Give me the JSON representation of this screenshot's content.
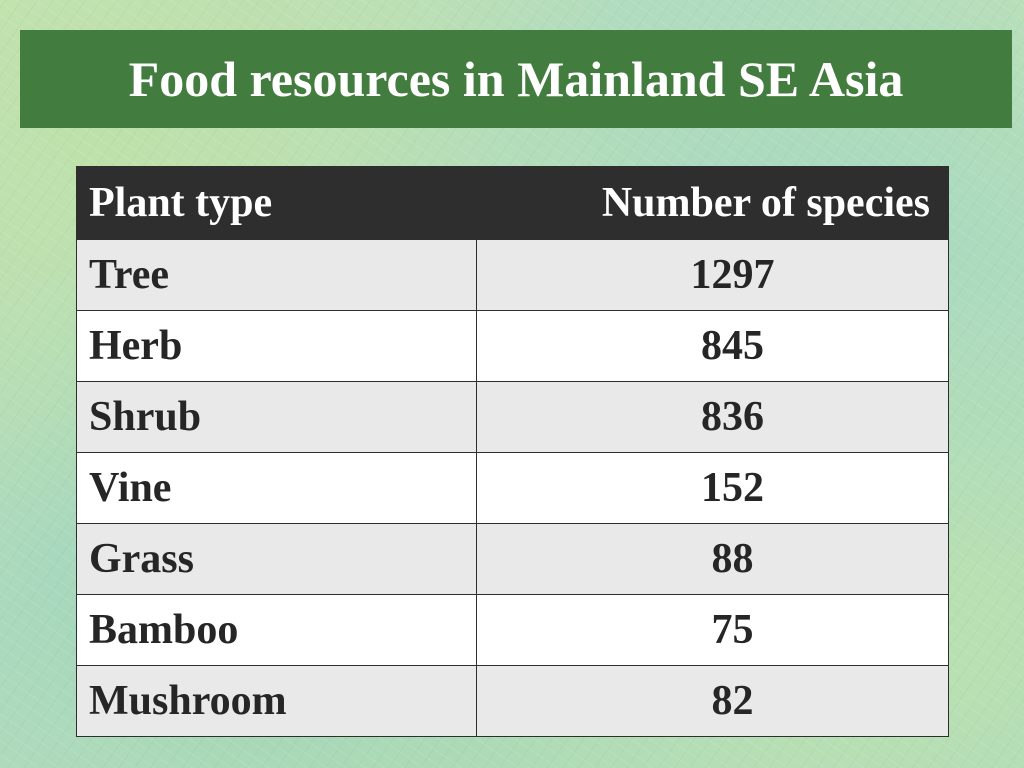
{
  "slide": {
    "title": "Food resources in Mainland SE Asia"
  },
  "table": {
    "headers": {
      "plant_type": "Plant type",
      "species_count": "Number of species"
    },
    "rows": [
      {
        "plant": "Tree",
        "count": "1297"
      },
      {
        "plant": "Herb",
        "count": "845"
      },
      {
        "plant": "Shrub",
        "count": "836"
      },
      {
        "plant": "Vine",
        "count": "152"
      },
      {
        "plant": "Grass",
        "count": "88"
      },
      {
        "plant": "Bamboo",
        "count": "75"
      },
      {
        "plant": "Mushroom",
        "count": "82"
      }
    ]
  },
  "colors": {
    "title_bar": "#437c3f",
    "header_row": "#2e2e2e",
    "row_odd": "#e9e9e9",
    "row_even": "#ffffff"
  }
}
